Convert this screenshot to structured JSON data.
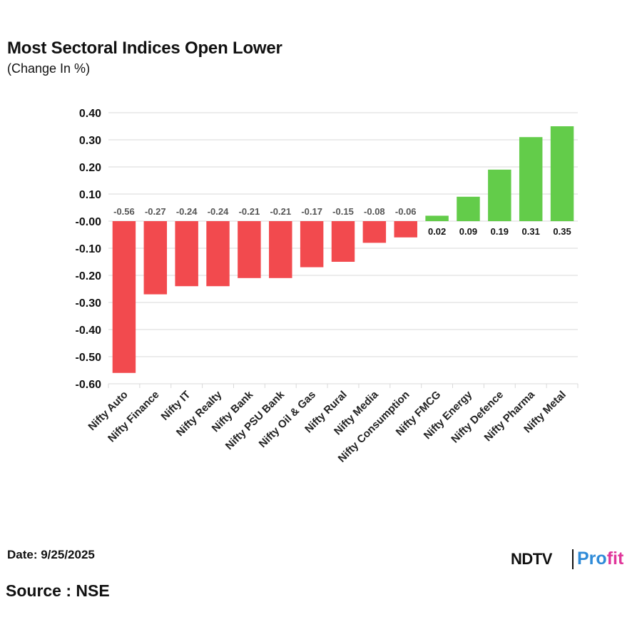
{
  "header": {
    "title": "Most Sectoral Indices Open Lower",
    "subtitle": "(Change In %)"
  },
  "footer": {
    "date": "Date: 9/25/2025",
    "source": "Source : NSE",
    "logo_left": "NDTV",
    "logo_right_blue": "Pro",
    "logo_right_pink": "fit"
  },
  "colors": {
    "negative": "#f24a4e",
    "positive": "#63cc4a",
    "grid": "#d9d9d9",
    "text": "#111111",
    "neg_label": "#555555"
  },
  "chart_data": {
    "type": "bar",
    "title": "Most Sectoral Indices Open Lower",
    "subtitle": "(Change In %)",
    "categories": [
      "Nifty Auto",
      "Nifty Finance",
      "Nifty IT",
      "Nifty Realty",
      "Nifty Bank",
      "Nifty PSU Bank",
      "Nifty Oil & Gas",
      "Nifty Rural",
      "Nifty Media",
      "Nifty Consumption",
      "Nifty FMCG",
      "Nifty Energy",
      "Nifty Defence",
      "Nifty Pharma",
      "Nifty Metal"
    ],
    "values": [
      -0.56,
      -0.27,
      -0.24,
      -0.24,
      -0.21,
      -0.21,
      -0.17,
      -0.15,
      -0.08,
      -0.06,
      0.02,
      0.09,
      0.19,
      0.31,
      0.35
    ],
    "value_labels": [
      "-0.56",
      "-0.27",
      "-0.24",
      "-0.24",
      "-0.21",
      "-0.21",
      "-0.17",
      "-0.15",
      "-0.08",
      "-0.06",
      "0.02",
      "0.09",
      "0.19",
      "0.31",
      "0.35"
    ],
    "ylim": [
      -0.6,
      0.4
    ],
    "yticks": [
      0.4,
      0.3,
      0.2,
      0.1,
      0.0,
      -0.1,
      -0.2,
      -0.3,
      -0.4,
      -0.5,
      -0.6
    ],
    "ytick_labels": [
      "0.40",
      "0.30",
      "0.20",
      "0.10",
      "-0.00",
      "-0.10",
      "-0.20",
      "-0.30",
      "-0.40",
      "-0.50",
      "-0.60"
    ],
    "xlabel": "",
    "ylabel": "",
    "grid": true,
    "legend": "none"
  }
}
